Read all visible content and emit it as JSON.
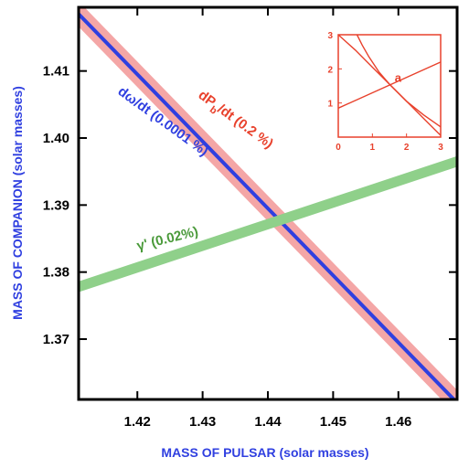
{
  "chart_data": [
    {
      "type": "line",
      "xlabel": "MASS OF PULSAR (solar masses)",
      "ylabel": "MASS OF COMPANION (solar masses)",
      "xlim": [
        1.411,
        1.469
      ],
      "ylim": [
        1.361,
        1.4195
      ],
      "x_ticks": [
        1.42,
        1.43,
        1.44,
        1.45,
        1.46
      ],
      "x_tick_labels": [
        "1.42",
        "1.43",
        "1.44",
        "1.45",
        "1.46"
      ],
      "y_ticks": [
        1.37,
        1.38,
        1.39,
        1.4,
        1.41
      ],
      "y_tick_labels": [
        "1.37",
        "1.38",
        "1.39",
        "1.40",
        "1.41"
      ],
      "grid": false,
      "series": [
        {
          "color": "#f4a6a6",
          "style": "band",
          "x": [
            1.411,
            1.469
          ],
          "y_center": [
            1.4185,
            1.3605
          ],
          "half_width": 0.0019,
          "label": "dP_b/dt (0.2 %)",
          "label_color": "#e8412c"
        },
        {
          "color": "#2f3fe0",
          "style": "line",
          "x": [
            1.411,
            1.469
          ],
          "y": [
            1.4185,
            1.3605
          ],
          "label": "dω/dt (0.0001 %)",
          "label_color": "#2f3fe0"
        },
        {
          "color": "#8fd08a",
          "style": "band",
          "x": [
            1.411,
            1.469
          ],
          "y_center": [
            1.3778,
            1.3965
          ],
          "half_width": 0.0008,
          "label": "γ' (0.02%)",
          "label_color": "#4a9a3a"
        }
      ]
    },
    {
      "type": "line",
      "panel_label": "a",
      "xlim": [
        0,
        3
      ],
      "ylim": [
        0,
        3
      ],
      "x_ticks": [
        0,
        1,
        2,
        3
      ],
      "x_tick_labels": [
        "0",
        "1",
        "2",
        "3"
      ],
      "y_ticks": [
        1,
        2,
        3
      ],
      "y_tick_labels": [
        "1",
        "2",
        "3"
      ],
      "frame_color": "#e8412c",
      "series": [
        {
          "color": "#e8412c",
          "x": [
            0,
            0.5,
            1,
            1.5,
            2,
            2.5,
            3
          ],
          "y": [
            3,
            2.55,
            2.05,
            1.55,
            1.05,
            0.55,
            0.05
          ]
        },
        {
          "color": "#e8412c",
          "x": [
            0,
            3
          ],
          "y": [
            0.85,
            2.2
          ]
        },
        {
          "color": "#e8412c",
          "x": [
            0.55,
            0.7,
            0.9,
            1.2,
            1.5,
            2.0,
            2.5,
            3.0
          ],
          "y": [
            3.0,
            2.7,
            2.35,
            1.9,
            1.55,
            1.05,
            0.65,
            0.3
          ]
        }
      ]
    }
  ]
}
